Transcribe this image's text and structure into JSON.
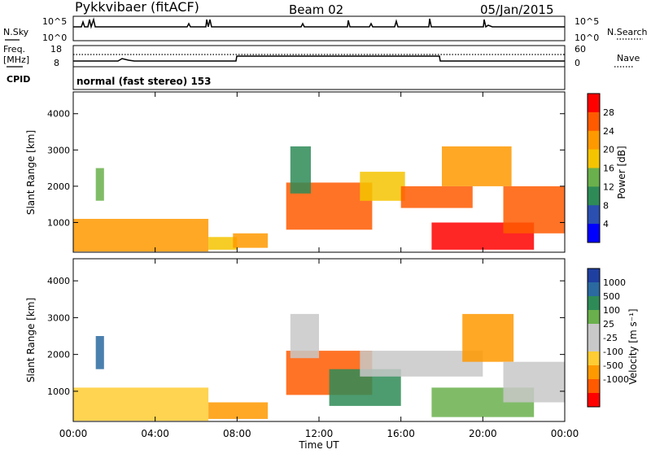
{
  "header": {
    "station": "Pykkvibaer (fitACF)",
    "beam": "Beam 02",
    "date": "05/Jan/2015"
  },
  "top_panels": {
    "nsky_label": "N.Sky",
    "nsearch_label": "N.Search",
    "nsky_ticks": [
      "10^5",
      "10^0"
    ],
    "nsearch_ticks": [
      "10^5",
      "10^0"
    ],
    "freq_label": "Freq.",
    "freq_unit": "[MHz]",
    "freq_ticks": [
      "18",
      "8"
    ],
    "nave_label": "Nave",
    "nave_ticks": [
      "60",
      "0"
    ],
    "cpid_label": "CPID",
    "cpid_value": "normal (fast stereo) 153"
  },
  "colors": {
    "power_scale": [
      "#0000ff",
      "#2a4fb0",
      "#2e8b57",
      "#6ab04c",
      "#f5c400",
      "#ff9900",
      "#ff5a00",
      "#ff0000"
    ],
    "velocity_scale": [
      "#ff0000",
      "#ff5a00",
      "#ff9900",
      "#ffcc33",
      "#c8c8c8",
      "#c8c8c8",
      "#6ab04c",
      "#2e8b57",
      "#2a6aa0",
      "#1f3fa0"
    ]
  },
  "chart_data": [
    {
      "type": "heatmap",
      "name": "power",
      "ylabel": "Slant Range [km]",
      "xlabel": "Time UT",
      "x_ticks": [
        "00:00",
        "04:00",
        "08:00",
        "12:00",
        "16:00",
        "20:00",
        "00:00"
      ],
      "y_ticks": [
        "1000",
        "2000",
        "3000",
        "4000"
      ],
      "ylim": [
        180,
        4600
      ],
      "xlim_hours": [
        0,
        24
      ],
      "colorbar_label": "Power [dB]",
      "colorbar_ticks": [
        "4",
        "8",
        "12",
        "16",
        "20",
        "24",
        "28"
      ],
      "regions": [
        {
          "t": [
            0.0,
            6.6
          ],
          "r": [
            200,
            1100
          ],
          "level": 5
        },
        {
          "t": [
            1.1,
            1.5
          ],
          "r": [
            1600,
            2500
          ],
          "level": 3
        },
        {
          "t": [
            6.6,
            8.0
          ],
          "r": [
            250,
            600
          ],
          "level": 4
        },
        {
          "t": [
            7.8,
            9.5
          ],
          "r": [
            300,
            700
          ],
          "level": 5
        },
        {
          "t": [
            10.4,
            14.6
          ],
          "r": [
            800,
            2100
          ],
          "level": 6
        },
        {
          "t": [
            10.6,
            11.6
          ],
          "r": [
            1800,
            3100
          ],
          "level": 2
        },
        {
          "t": [
            14.0,
            16.2
          ],
          "r": [
            1600,
            2400
          ],
          "level": 4
        },
        {
          "t": [
            16.0,
            19.5
          ],
          "r": [
            1400,
            2000
          ],
          "level": 6
        },
        {
          "t": [
            18.0,
            21.4
          ],
          "r": [
            2000,
            3100
          ],
          "level": 5
        },
        {
          "t": [
            17.5,
            22.5
          ],
          "r": [
            250,
            1000
          ],
          "level": 7
        },
        {
          "t": [
            21.0,
            24.0
          ],
          "r": [
            700,
            2000
          ],
          "level": 6
        }
      ]
    },
    {
      "type": "heatmap",
      "name": "velocity",
      "ylabel": "Slant Range [km]",
      "xlabel": "Time UT",
      "x_ticks": [
        "00:00",
        "04:00",
        "08:00",
        "12:00",
        "16:00",
        "20:00",
        "00:00"
      ],
      "y_ticks": [
        "1000",
        "2000",
        "3000",
        "4000"
      ],
      "ylim": [
        180,
        4600
      ],
      "xlim_hours": [
        0,
        24
      ],
      "colorbar_label": "Velocity [m s⁻¹]",
      "colorbar_ticks": [
        "1000",
        "500",
        "100",
        "25",
        "-25",
        "-100",
        "-500",
        "-1000"
      ],
      "regions": [
        {
          "t": [
            0.0,
            6.6
          ],
          "r": [
            200,
            1100
          ],
          "level": 3
        },
        {
          "t": [
            1.1,
            1.5
          ],
          "r": [
            1600,
            2500
          ],
          "level": 8
        },
        {
          "t": [
            6.6,
            9.5
          ],
          "r": [
            250,
            700
          ],
          "level": 2
        },
        {
          "t": [
            10.4,
            14.6
          ],
          "r": [
            900,
            2100
          ],
          "level": 1
        },
        {
          "t": [
            10.6,
            12.0
          ],
          "r": [
            1900,
            3100
          ],
          "level": 4
        },
        {
          "t": [
            12.5,
            16.0
          ],
          "r": [
            600,
            1600
          ],
          "level": 7
        },
        {
          "t": [
            14.0,
            20.0
          ],
          "r": [
            1400,
            2100
          ],
          "level": 4
        },
        {
          "t": [
            17.5,
            22.5
          ],
          "r": [
            300,
            1100
          ],
          "level": 6
        },
        {
          "t": [
            19.0,
            21.5
          ],
          "r": [
            1800,
            3100
          ],
          "level": 2
        },
        {
          "t": [
            21.0,
            24.0
          ],
          "r": [
            700,
            1800
          ],
          "level": 4
        }
      ]
    }
  ]
}
